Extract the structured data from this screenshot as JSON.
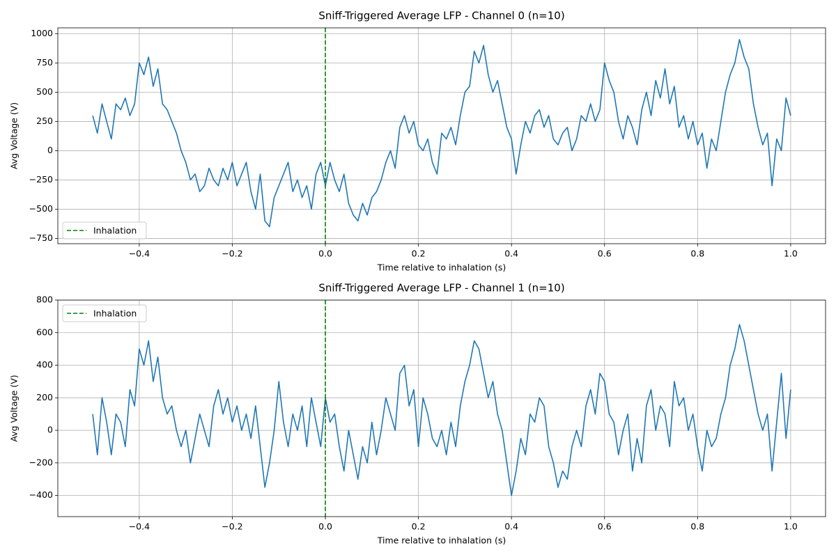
{
  "chart_data": [
    {
      "type": "line",
      "title": "Sniff-Triggered Average LFP - Channel 0 (n=10)",
      "xlabel": "Time relative to inhalation (s)",
      "ylabel": "Avg Voltage (V)",
      "x": [
        -0.5,
        -0.49,
        -0.48,
        -0.47,
        -0.46,
        -0.45,
        -0.44,
        -0.43,
        -0.42,
        -0.41,
        -0.4,
        -0.39,
        -0.38,
        -0.37,
        -0.36,
        -0.35,
        -0.34,
        -0.33,
        -0.32,
        -0.31,
        -0.3,
        -0.29,
        -0.28,
        -0.27,
        -0.26,
        -0.25,
        -0.24,
        -0.23,
        -0.22,
        -0.21,
        -0.2,
        -0.19,
        -0.18,
        -0.17,
        -0.16,
        -0.15,
        -0.14,
        -0.13,
        -0.12,
        -0.11,
        -0.1,
        -0.09,
        -0.08,
        -0.07,
        -0.06,
        -0.05,
        -0.04,
        -0.03,
        -0.02,
        -0.01,
        0,
        0.01,
        0.02,
        0.03,
        0.04,
        0.05,
        0.06,
        0.07,
        0.08,
        0.09,
        0.1,
        0.11,
        0.12,
        0.13,
        0.14,
        0.15,
        0.16,
        0.17,
        0.18,
        0.19,
        0.2,
        0.21,
        0.22,
        0.23,
        0.24,
        0.25,
        0.26,
        0.27,
        0.28,
        0.29,
        0.3,
        0.31,
        0.32,
        0.33,
        0.34,
        0.35,
        0.36,
        0.37,
        0.38,
        0.39,
        0.4,
        0.41,
        0.42,
        0.43,
        0.44,
        0.45,
        0.46,
        0.47,
        0.48,
        0.49,
        0.5,
        0.51,
        0.52,
        0.53,
        0.54,
        0.55,
        0.56,
        0.57,
        0.58,
        0.59,
        0.6,
        0.61,
        0.62,
        0.63,
        0.64,
        0.65,
        0.66,
        0.67,
        0.68,
        0.69,
        0.7,
        0.71,
        0.72,
        0.73,
        0.74,
        0.75,
        0.76,
        0.77,
        0.78,
        0.79,
        0.8,
        0.81,
        0.82,
        0.83,
        0.84,
        0.85,
        0.86,
        0.87,
        0.88,
        0.89,
        0.9,
        0.91,
        0.92,
        0.93,
        0.94,
        0.95,
        0.96,
        0.97,
        0.98,
        0.99,
        1.0
      ],
      "series": [
        {
          "color": "#1f77b4",
          "values": [
            300,
            150,
            400,
            250,
            100,
            400,
            350,
            450,
            300,
            400,
            750,
            650,
            800,
            550,
            700,
            400,
            350,
            250,
            150,
            0,
            -100,
            -250,
            -200,
            -350,
            -300,
            -150,
            -250,
            -300,
            -150,
            -250,
            -100,
            -300,
            -200,
            -100,
            -350,
            -500,
            -200,
            -600,
            -650,
            -400,
            -300,
            -200,
            -100,
            -350,
            -250,
            -400,
            -300,
            -500,
            -200,
            -100,
            -300,
            -100,
            -250,
            -350,
            -200,
            -450,
            -550,
            -600,
            -450,
            -550,
            -400,
            -350,
            -250,
            -100,
            0,
            -150,
            200,
            300,
            150,
            250,
            50,
            0,
            100,
            -100,
            -200,
            150,
            100,
            200,
            50,
            300,
            500,
            550,
            850,
            750,
            900,
            650,
            500,
            600,
            400,
            200,
            100,
            -200,
            50,
            250,
            150,
            300,
            350,
            200,
            300,
            100,
            50,
            150,
            200,
            0,
            100,
            300,
            250,
            400,
            250,
            350,
            750,
            600,
            500,
            250,
            100,
            300,
            200,
            50,
            350,
            500,
            300,
            600,
            450,
            700,
            400,
            550,
            200,
            300,
            100,
            250,
            50,
            150,
            -150,
            100,
            0,
            250,
            500,
            650,
            750,
            950,
            800,
            700,
            400,
            200,
            50,
            150,
            -300,
            100,
            0,
            450,
            300
          ]
        }
      ],
      "vline": {
        "x": 0,
        "label": "Inhalation",
        "color": "#008000"
      },
      "legend": "lower left",
      "grid": true,
      "xlim": [
        -0.575,
        1.075
      ],
      "xticks": [
        {
          "value": -0.4,
          "label": "−0.4"
        },
        {
          "value": -0.2,
          "label": "−0.2"
        },
        {
          "value": 0,
          "label": "0.0"
        },
        {
          "value": 0.2,
          "label": "0.2"
        },
        {
          "value": 0.4,
          "label": "0.4"
        },
        {
          "value": 0.6,
          "label": "0.6"
        },
        {
          "value": 0.8,
          "label": "0.8"
        },
        {
          "value": 1.0,
          "label": "1.0"
        }
      ],
      "ylim": [
        -795,
        1050
      ],
      "yticks": [
        {
          "value": -750,
          "label": "−750"
        },
        {
          "value": -500,
          "label": "−500"
        },
        {
          "value": -250,
          "label": "−250"
        },
        0,
        250,
        500,
        750,
        1000
      ]
    },
    {
      "type": "line",
      "title": "Sniff-Triggered Average LFP - Channel 1 (n=10)",
      "xlabel": "Time relative to inhalation (s)",
      "ylabel": "Avg Voltage (V)",
      "x": [
        -0.5,
        -0.49,
        -0.48,
        -0.47,
        -0.46,
        -0.45,
        -0.44,
        -0.43,
        -0.42,
        -0.41,
        -0.4,
        -0.39,
        -0.38,
        -0.37,
        -0.36,
        -0.35,
        -0.34,
        -0.33,
        -0.32,
        -0.31,
        -0.3,
        -0.29,
        -0.28,
        -0.27,
        -0.26,
        -0.25,
        -0.24,
        -0.23,
        -0.22,
        -0.21,
        -0.2,
        -0.19,
        -0.18,
        -0.17,
        -0.16,
        -0.15,
        -0.14,
        -0.13,
        -0.12,
        -0.11,
        -0.1,
        -0.09,
        -0.08,
        -0.07,
        -0.06,
        -0.05,
        -0.04,
        -0.03,
        -0.02,
        -0.01,
        0,
        0.01,
        0.02,
        0.03,
        0.04,
        0.05,
        0.06,
        0.07,
        0.08,
        0.09,
        0.1,
        0.11,
        0.12,
        0.13,
        0.14,
        0.15,
        0.16,
        0.17,
        0.18,
        0.19,
        0.2,
        0.21,
        0.22,
        0.23,
        0.24,
        0.25,
        0.26,
        0.27,
        0.28,
        0.29,
        0.3,
        0.31,
        0.32,
        0.33,
        0.34,
        0.35,
        0.36,
        0.37,
        0.38,
        0.39,
        0.4,
        0.41,
        0.42,
        0.43,
        0.44,
        0.45,
        0.46,
        0.47,
        0.48,
        0.49,
        0.5,
        0.51,
        0.52,
        0.53,
        0.54,
        0.55,
        0.56,
        0.57,
        0.58,
        0.59,
        0.6,
        0.61,
        0.62,
        0.63,
        0.64,
        0.65,
        0.66,
        0.67,
        0.68,
        0.69,
        0.7,
        0.71,
        0.72,
        0.73,
        0.74,
        0.75,
        0.76,
        0.77,
        0.78,
        0.79,
        0.8,
        0.81,
        0.82,
        0.83,
        0.84,
        0.85,
        0.86,
        0.87,
        0.88,
        0.89,
        0.9,
        0.91,
        0.92,
        0.93,
        0.94,
        0.95,
        0.96,
        0.97,
        0.98,
        0.99,
        1.0
      ],
      "series": [
        {
          "color": "#1f77b4",
          "values": [
            100,
            -150,
            200,
            50,
            -150,
            100,
            50,
            -100,
            250,
            150,
            500,
            400,
            550,
            300,
            450,
            200,
            100,
            150,
            0,
            -100,
            0,
            -200,
            -50,
            100,
            0,
            -100,
            150,
            250,
            100,
            200,
            50,
            150,
            0,
            100,
            -50,
            150,
            -100,
            -350,
            -200,
            0,
            300,
            50,
            -100,
            100,
            0,
            150,
            -100,
            200,
            50,
            -100,
            200,
            50,
            100,
            -100,
            -250,
            0,
            -150,
            -300,
            -100,
            -200,
            50,
            -150,
            0,
            200,
            100,
            0,
            350,
            400,
            150,
            250,
            -100,
            200,
            100,
            -50,
            -100,
            0,
            -150,
            50,
            -100,
            150,
            300,
            400,
            550,
            500,
            350,
            200,
            300,
            100,
            0,
            -200,
            -400,
            -250,
            -50,
            -150,
            100,
            50,
            200,
            150,
            -100,
            -200,
            -350,
            -250,
            -300,
            -100,
            0,
            -100,
            150,
            250,
            100,
            350,
            300,
            100,
            50,
            -150,
            0,
            100,
            -250,
            -50,
            -200,
            150,
            250,
            0,
            150,
            100,
            -100,
            300,
            150,
            200,
            0,
            100,
            -100,
            -250,
            0,
            -100,
            -50,
            100,
            200,
            400,
            500,
            650,
            550,
            400,
            250,
            100,
            0,
            100,
            -250,
            50,
            350,
            -50,
            250
          ]
        }
      ],
      "vline": {
        "x": 0,
        "label": "Inhalation",
        "color": "#008000"
      },
      "legend": "upper left",
      "grid": true,
      "xlim": [
        -0.575,
        1.075
      ],
      "xticks": [
        {
          "value": -0.4,
          "label": "−0.4"
        },
        {
          "value": -0.2,
          "label": "−0.2"
        },
        {
          "value": 0,
          "label": "0.0"
        },
        {
          "value": 0.2,
          "label": "0.2"
        },
        {
          "value": 0.4,
          "label": "0.4"
        },
        {
          "value": 0.6,
          "label": "0.6"
        },
        {
          "value": 0.8,
          "label": "0.8"
        },
        {
          "value": 1.0,
          "label": "1.0"
        }
      ],
      "ylim": [
        -530,
        800
      ],
      "yticks": [
        {
          "value": -400,
          "label": "−400"
        },
        {
          "value": -200,
          "label": "−200"
        },
        0,
        200,
        400,
        600,
        800
      ]
    }
  ]
}
